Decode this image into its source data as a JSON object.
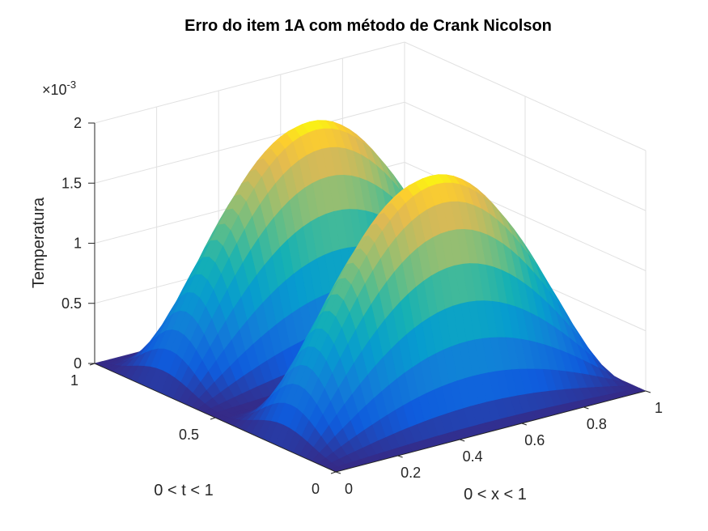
{
  "chart_data": {
    "type": "surface",
    "title": "Erro do item 1A com método de Crank Nicolson",
    "xlabel": "0 < x < 1",
    "ylabel": "0 < t < 1",
    "zlabel": "Temperatura",
    "x_range": [
      0,
      1
    ],
    "t_range": [
      0,
      1
    ],
    "z_range": [
      0,
      0.002
    ],
    "z_exponent_label": "×10",
    "z_exponent_power": "-3",
    "x_ticks": [
      "0",
      "0.2",
      "0.4",
      "0.6",
      "0.8",
      "1"
    ],
    "t_ticks": [
      "0",
      "0.5",
      "1"
    ],
    "z_ticks": [
      "0",
      "0.5",
      "1",
      "1.5",
      "2"
    ],
    "peaks": [
      {
        "x": 0.5,
        "t": 0.25,
        "z": 0.0019
      },
      {
        "x": 0.5,
        "t": 0.75,
        "z": 0.0019
      }
    ],
    "colormap": "parula",
    "grid": true
  }
}
